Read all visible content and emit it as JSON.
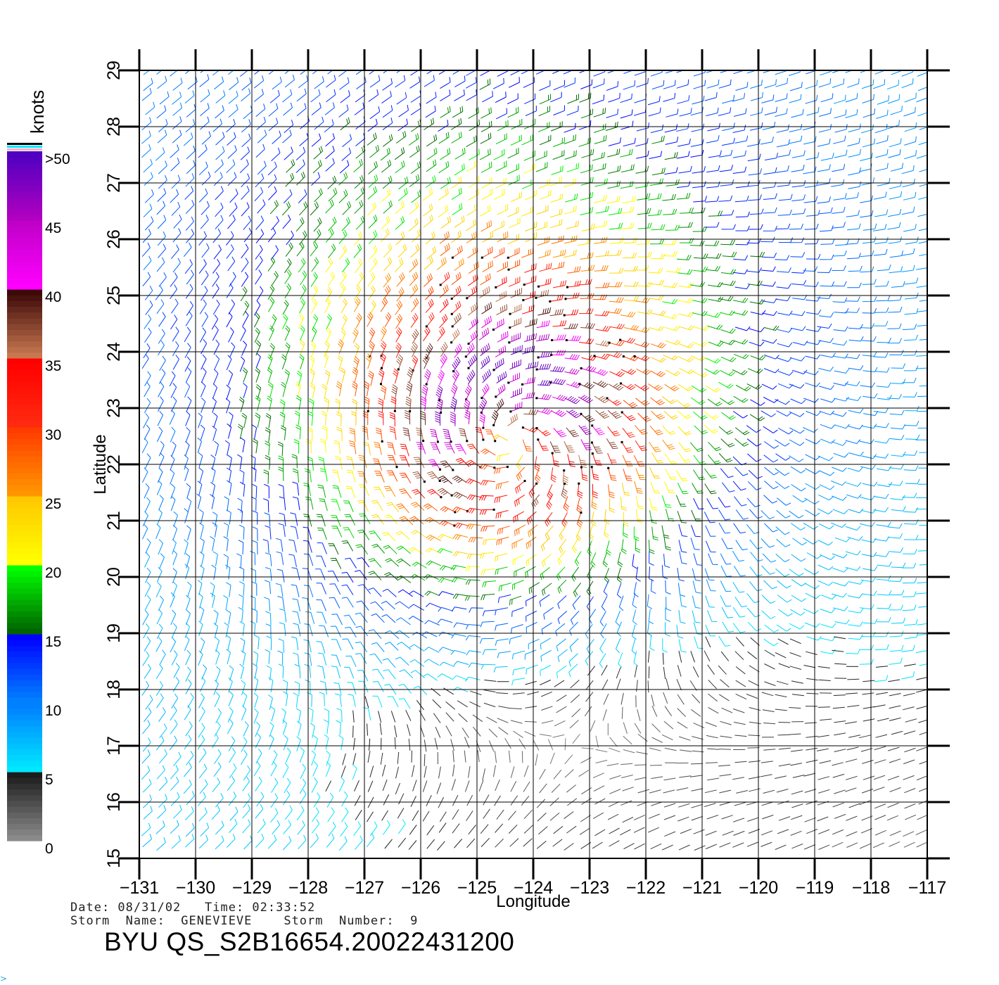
{
  "colorbar": {
    "unit_label": "knots",
    "tick_labels": [
      ">50",
      "45",
      "40",
      "35",
      "30",
      "25",
      "20",
      "15",
      "10",
      "5",
      "0"
    ],
    "bands": [
      {
        "from": 0,
        "to": 5,
        "colors": [
          "#8a8a8a",
          "#1c1c1c"
        ]
      },
      {
        "from": 5,
        "to": 10,
        "colors": [
          "#00e8ff",
          "#0080ff"
        ]
      },
      {
        "from": 10,
        "to": 15,
        "colors": [
          "#0080ff",
          "#0000ff"
        ]
      },
      {
        "from": 15,
        "to": 20,
        "colors": [
          "#006400",
          "#00ff00"
        ]
      },
      {
        "from": 20,
        "to": 25,
        "colors": [
          "#ffff00",
          "#ffc800"
        ]
      },
      {
        "from": 25,
        "to": 30,
        "colors": [
          "#ff9600",
          "#ff3c00"
        ]
      },
      {
        "from": 30,
        "to": 35,
        "colors": [
          "#ff2a10",
          "#ff0000"
        ]
      },
      {
        "from": 35,
        "to": 40,
        "colors": [
          "#c87850",
          "#3c0808"
        ]
      },
      {
        "from": 40,
        "to": 45,
        "colors": [
          "#ff00ff",
          "#c000c8"
        ]
      },
      {
        "from": 45,
        "to": 50,
        "colors": [
          "#b000c0",
          "#5000c0"
        ]
      }
    ],
    "top_stripes": [
      "#ffb0c0",
      "#00e8ff",
      "#000000"
    ]
  },
  "map": {
    "x_label": "Longitude",
    "y_label": "Latitude",
    "lon_range": [
      -131,
      -117
    ],
    "lat_range": [
      15,
      29
    ],
    "lon_ticks": [
      "−131",
      "−130",
      "−129",
      "−128",
      "−127",
      "−126",
      "−125",
      "−124",
      "−123",
      "−122",
      "−121",
      "−120",
      "−119",
      "−118",
      "−117"
    ],
    "lat_ticks": [
      "15",
      "16",
      "17",
      "18",
      "19",
      "20",
      "21",
      "22",
      "23",
      "24",
      "25",
      "26",
      "27",
      "28",
      "29"
    ],
    "grid": true,
    "storm_center": {
      "lon": -124.4,
      "lat": 22.5
    },
    "wind_field": "cyclonic (counter-clockwise) circulation; speeds 0-50 knots, strongest 35-45 kt near center"
  },
  "footer": {
    "date_time": "Date: 08/31/02   Time: 02:33:52",
    "storm": "Storm  Name:  GENEVIEVE    Storm  Number:  9",
    "product_id": "BYU  QS_S2B16654.20022431200"
  },
  "corner_mark": ">"
}
